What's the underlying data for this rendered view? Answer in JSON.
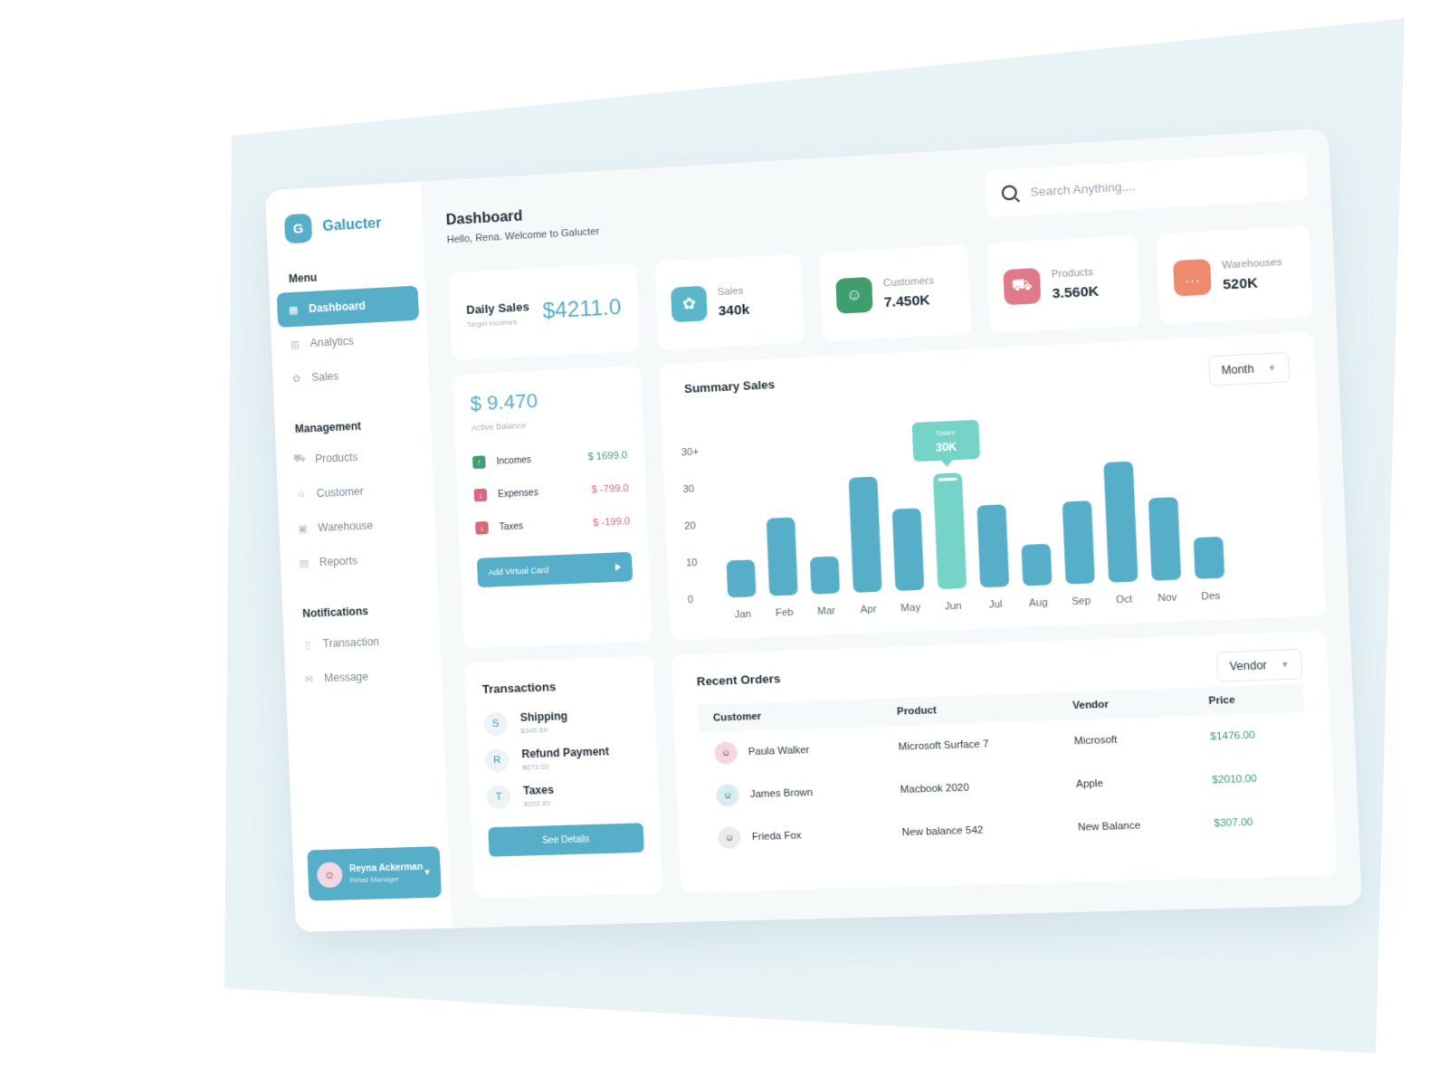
{
  "brand": {
    "logo_letter": "G",
    "name": "Galucter"
  },
  "sidebar": {
    "sections": [
      {
        "label": "Menu",
        "items": [
          {
            "label": "Dashboard",
            "icon": "grid-icon",
            "active": true
          },
          {
            "label": "Analytics",
            "icon": "chart-icon"
          },
          {
            "label": "Sales",
            "icon": "badge-icon"
          }
        ]
      },
      {
        "label": "Management",
        "items": [
          {
            "label": "Products",
            "icon": "cart-icon"
          },
          {
            "label": "Customer",
            "icon": "users-icon"
          },
          {
            "label": "Warehouse",
            "icon": "box-icon"
          },
          {
            "label": "Reports",
            "icon": "document-icon"
          }
        ]
      },
      {
        "label": "Notifications",
        "items": [
          {
            "label": "Transaction",
            "icon": "file-icon"
          },
          {
            "label": "Message",
            "icon": "mail-icon"
          }
        ]
      }
    ]
  },
  "user": {
    "name": "Reyna Ackerman",
    "role": "Retail Manager"
  },
  "header": {
    "title": "Dashboard",
    "subtitle": "Hello, Rena. Welcome to Galucter"
  },
  "search": {
    "placeholder": "Search Anything...."
  },
  "daily_sales": {
    "label": "Daily Sales",
    "sub": "Target Incomes",
    "value": "$4211.0"
  },
  "stats": [
    {
      "label": "Sales",
      "value": "340k",
      "color": "#5ab7c9",
      "icon": "badge-icon"
    },
    {
      "label": "Customers",
      "value": "7.450K",
      "color": "#3e9e6e",
      "icon": "users-icon"
    },
    {
      "label": "Products",
      "value": "3.560K",
      "color": "#e07a8a",
      "icon": "cart-icon"
    },
    {
      "label": "Warehouses",
      "value": "520K",
      "color": "#ee8a6e",
      "icon": "chat-icon"
    }
  ],
  "balance": {
    "value": "$ 9.470",
    "sub": "Active Balance",
    "rows": [
      {
        "label": "Incomes",
        "amount": "$ 1699.0",
        "type": "up",
        "color": "#3e9e6e"
      },
      {
        "label": "Expenses",
        "amount": "$ -799.0",
        "type": "down",
        "color": "#d9687f"
      },
      {
        "label": "Taxes",
        "amount": "$ -199.0",
        "type": "down",
        "color": "#d9687f"
      }
    ],
    "button": "Add Virtual Card"
  },
  "summary": {
    "title": "Summary Sales",
    "filter": "Month"
  },
  "chart_data": {
    "type": "bar",
    "categories": [
      "Jan",
      "Feb",
      "Mar",
      "Apr",
      "May",
      "Jun",
      "Jul",
      "Aug",
      "Sep",
      "Oct",
      "Nov",
      "Des"
    ],
    "values": [
      10,
      21,
      10,
      31,
      22,
      31,
      22,
      11,
      22,
      32,
      22,
      11
    ],
    "ylim": [
      0,
      40
    ],
    "yticks": [
      "0",
      "10",
      "20",
      "30",
      "30+"
    ],
    "highlight": {
      "index": 5,
      "label": "Sales",
      "value": "30K"
    },
    "bar_color": "#57aec8",
    "highlight_color": "#76d3c7"
  },
  "transactions": {
    "title": "Transactions",
    "items": [
      {
        "letter": "S",
        "name": "Shipping",
        "amount": "$345.59"
      },
      {
        "letter": "R",
        "name": "Refund Payment",
        "amount": "$673.00"
      },
      {
        "letter": "T",
        "name": "Taxes",
        "amount": "$202.89"
      }
    ],
    "button": "See Details"
  },
  "orders": {
    "title": "Recent Orders",
    "filter": "Vendor",
    "columns": [
      "Customer",
      "Product",
      "Vendor",
      "Price"
    ],
    "rows": [
      {
        "customer": "Paula Walker",
        "product": "Microsoft Surface 7",
        "vendor": "Microsoft",
        "price": "$1476.00",
        "avatar_color": "#f3d7e2"
      },
      {
        "customer": "James Brown",
        "product": "Macbook 2020",
        "vendor": "Apple",
        "price": "$2010.00",
        "avatar_color": "#d6eef0"
      },
      {
        "customer": "Frieda Fox",
        "product": "New balance 542",
        "vendor": "New Balance",
        "price": "$307.00",
        "avatar_color": "#ececec"
      }
    ]
  }
}
